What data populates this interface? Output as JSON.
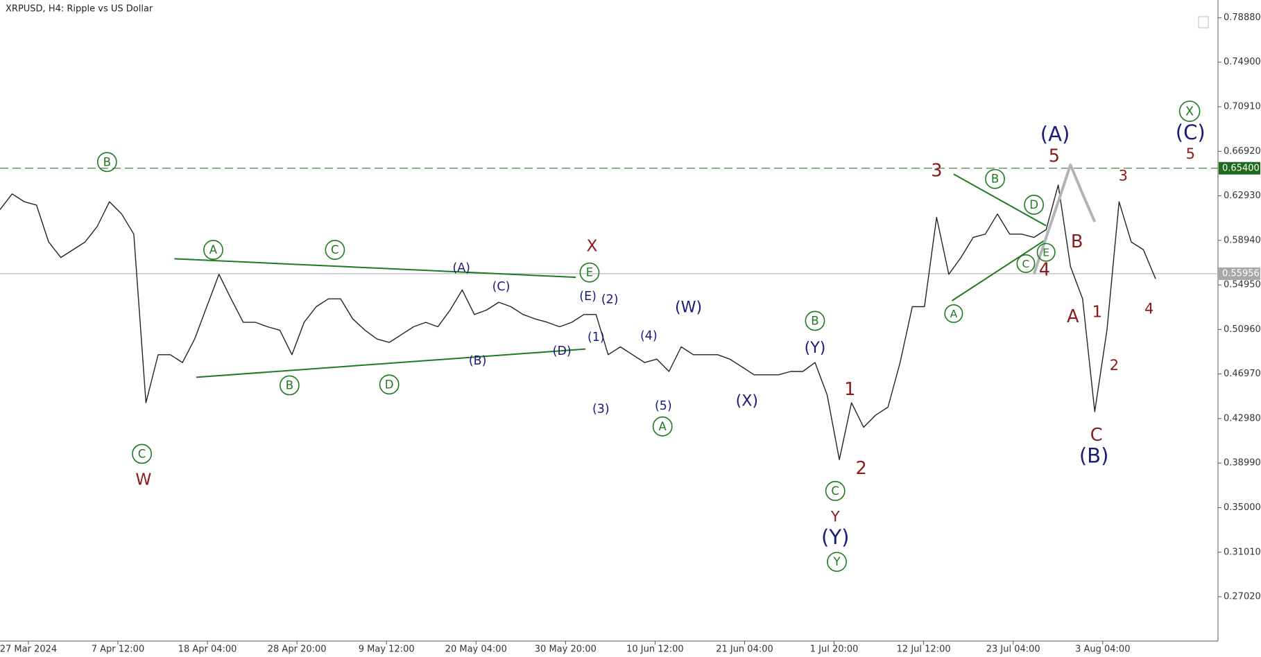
{
  "chart_data": {
    "type": "line",
    "title": "XRPUSD, H4:  Ripple vs US Dollar",
    "ylim": [
      0.2305,
      0.8047
    ],
    "yticks": [
      {
        "value": 0.7888,
        "label": "0.78880"
      },
      {
        "value": 0.749,
        "label": "0.74900"
      },
      {
        "value": 0.7091,
        "label": "0.70910"
      },
      {
        "value": 0.6692,
        "label": "0.66920"
      },
      {
        "value": 0.6293,
        "label": "0.62930"
      },
      {
        "value": 0.5894,
        "label": "0.58940"
      },
      {
        "value": 0.5495,
        "label": "0.54950"
      },
      {
        "value": 0.5096,
        "label": "0.50960"
      },
      {
        "value": 0.4697,
        "label": "0.46970"
      },
      {
        "value": 0.4298,
        "label": "0.42980"
      },
      {
        "value": 0.3899,
        "label": "0.38990"
      },
      {
        "value": 0.35,
        "label": "0.35000"
      },
      {
        "value": 0.3101,
        "label": "0.31010"
      },
      {
        "value": 0.2702,
        "label": "0.27020"
      }
    ],
    "xticks": [
      "27 Mar 2024",
      "7 Apr 12:00",
      "18 Apr 04:00",
      "28 Apr 20:00",
      "9 May 12:00",
      "20 May 04:00",
      "30 May 20:00",
      "10 Jun 12:00",
      "21 Jun 04:00",
      "1 Jul 20:00",
      "12 Jul 12:00",
      "23 Jul 04:00",
      "3 Aug 04:00"
    ],
    "levels": [
      {
        "value": 0.654,
        "label": "0.65400",
        "color": "#1e6b1e",
        "dashed": true
      },
      {
        "value": 0.55956,
        "label": "0.55956",
        "color": "#a8a8a8",
        "dashed": false
      }
    ],
    "series": [
      {
        "color": "#222222",
        "values": [
          0.617,
          0.631,
          0.624,
          0.621,
          0.588,
          0.574,
          0.581,
          0.588,
          0.602,
          0.624,
          0.613,
          0.595,
          0.444,
          0.487,
          0.487,
          0.48,
          0.501,
          0.53,
          0.559,
          0.537,
          0.516,
          0.516,
          0.512,
          0.509,
          0.487,
          0.516,
          0.53,
          0.537,
          0.537,
          0.519,
          0.509,
          0.501,
          0.498,
          0.505,
          0.512,
          0.516,
          0.512,
          0.527,
          0.545,
          0.523,
          0.527,
          0.534,
          0.53,
          0.523,
          0.519,
          0.516,
          0.512,
          0.516,
          0.523,
          0.523,
          0.487,
          0.494,
          0.487,
          0.48,
          0.483,
          0.472,
          0.494,
          0.487,
          0.487,
          0.487,
          0.483,
          0.476,
          0.469,
          0.469,
          0.469,
          0.472,
          0.472,
          0.48,
          0.451,
          0.393,
          0.444,
          0.422,
          0.433,
          0.44,
          0.48,
          0.53,
          0.53,
          0.61,
          0.559,
          0.574,
          0.592,
          0.595,
          0.613,
          0.595,
          0.595,
          0.592,
          0.599,
          0.639,
          0.566,
          0.537,
          0.436,
          0.509,
          0.624,
          0.588,
          0.581,
          0.555,
          null,
          null,
          null,
          null,
          null
        ]
      },
      {
        "color": "#b4b4b4",
        "values": [
          null,
          null,
          null,
          null,
          null,
          null,
          null,
          null,
          null,
          null,
          null,
          null,
          null,
          null,
          null,
          null,
          null,
          null,
          null,
          null,
          null,
          null,
          null,
          null,
          null,
          null,
          null,
          null,
          null,
          null,
          null,
          null,
          null,
          null,
          null,
          null,
          null,
          null,
          null,
          null,
          null,
          null,
          null,
          null,
          null,
          null,
          null,
          null,
          null,
          null,
          null,
          null,
          null,
          null,
          null,
          null,
          null,
          null,
          null,
          null,
          null,
          null,
          null,
          null,
          null,
          null,
          null,
          null,
          null,
          null,
          null,
          null,
          null,
          null,
          null,
          null,
          null,
          null,
          null,
          null,
          null,
          null,
          null,
          null,
          null,
          0.559,
          0.592,
          0.624,
          0.657,
          0.631,
          0.606
        ]
      }
    ],
    "annotations": [
      {
        "text": "B",
        "color": "#1e7a1e",
        "circled": true
      },
      {
        "text": "A",
        "color": "#1e7a1e",
        "circled": true
      },
      {
        "text": "C",
        "color": "#1e7a1e",
        "circled": true
      },
      {
        "text": "E",
        "color": "#1e7a1e",
        "circled": true
      },
      {
        "text": "C",
        "color": "#1e7a1e",
        "circled": true
      },
      {
        "text": "B",
        "color": "#1e7a1e",
        "circled": true
      },
      {
        "text": "D",
        "color": "#1e7a1e",
        "circled": true
      },
      {
        "text": "A",
        "color": "#1e7a1e",
        "circled": true
      },
      {
        "text": "B",
        "color": "#1e7a1e",
        "circled": true
      },
      {
        "text": "C",
        "color": "#1e7a1e",
        "circled": true
      },
      {
        "text": "Y",
        "color": "#1e7a1e",
        "circled": true
      },
      {
        "text": "B",
        "color": "#1e7a1e",
        "circled": true
      },
      {
        "text": "D",
        "color": "#1e7a1e",
        "circled": true
      },
      {
        "text": "A",
        "color": "#1e7a1e",
        "circled": true
      },
      {
        "text": "E",
        "color": "#1e7a1e",
        "circled": true
      },
      {
        "text": "C",
        "color": "#1e7a1e",
        "circled": true
      },
      {
        "text": "X",
        "color": "#1e7a1e",
        "circled": true
      },
      {
        "text": "X",
        "color": "#8b1a1a",
        "circled": false
      },
      {
        "text": "W",
        "color": "#8b1a1a",
        "circled": false
      },
      {
        "text": "1",
        "color": "#8b1a1a",
        "circled": false
      },
      {
        "text": "2",
        "color": "#8b1a1a",
        "circled": false
      },
      {
        "text": "Y",
        "color": "#8b1a1a",
        "circled": false
      },
      {
        "text": "3",
        "color": "#8b1a1a",
        "circled": false
      },
      {
        "text": "5",
        "color": "#8b1a1a",
        "circled": false
      },
      {
        "text": "B",
        "color": "#8b1a1a",
        "circled": false
      },
      {
        "text": "4",
        "color": "#8b1a1a",
        "circled": false
      },
      {
        "text": "A",
        "color": "#8b1a1a",
        "circled": false
      },
      {
        "text": "1",
        "color": "#8b1a1a",
        "circled": false
      },
      {
        "text": "C",
        "color": "#8b1a1a",
        "circled": false
      },
      {
        "text": "2",
        "color": "#8b1a1a",
        "circled": false
      },
      {
        "text": "3",
        "color": "#8b1a1a",
        "circled": false
      },
      {
        "text": "4",
        "color": "#8b1a1a",
        "circled": false
      },
      {
        "text": "5",
        "color": "#8b1a1a",
        "circled": false
      },
      {
        "text": "(A)",
        "color": "#1a1a7a",
        "circled": false
      },
      {
        "text": "(C)",
        "color": "#1a1a7a",
        "circled": false
      },
      {
        "text": "(E)",
        "color": "#1a1a7a",
        "circled": false
      },
      {
        "text": "(2)",
        "color": "#1a1a7a",
        "circled": false
      },
      {
        "text": "(1)",
        "color": "#1a1a7a",
        "circled": false
      },
      {
        "text": "(D)",
        "color": "#1a1a7a",
        "circled": false
      },
      {
        "text": "(B)",
        "color": "#1a1a7a",
        "circled": false
      },
      {
        "text": "(3)",
        "color": "#1a1a7a",
        "circled": false
      },
      {
        "text": "(4)",
        "color": "#1a1a7a",
        "circled": false
      },
      {
        "text": "(5)",
        "color": "#1a1a7a",
        "circled": false
      },
      {
        "text": "(W)",
        "color": "#1a1a7a",
        "circled": false
      },
      {
        "text": "(X)",
        "color": "#1a1a7a",
        "circled": false
      },
      {
        "text": "(Y)",
        "color": "#1a1a7a",
        "circled": false
      },
      {
        "text": "(Y)",
        "color": "#1a1a7a",
        "circled": false
      },
      {
        "text": "(A)",
        "color": "#1a1a7a",
        "circled": false
      },
      {
        "text": "(C)",
        "color": "#1a1a7a",
        "circled": false
      },
      {
        "text": "(B)",
        "color": "#1a1a7a",
        "circled": false
      }
    ]
  }
}
